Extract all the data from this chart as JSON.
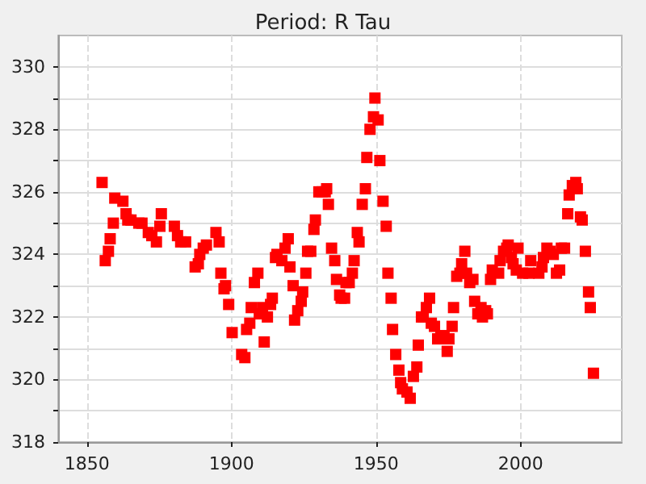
{
  "chart_data": {
    "type": "scatter",
    "title": "Period: R Tau",
    "x": [
      1855.2,
      1856.3,
      1857.4,
      1858.0,
      1859.1,
      1859.6,
      1862.4,
      1863.5,
      1864.1,
      1865.2,
      1867.9,
      1869.0,
      1871.2,
      1872.4,
      1874.0,
      1875.2,
      1875.7,
      1880.2,
      1881.3,
      1882.4,
      1884.1,
      1887.4,
      1888.5,
      1889.0,
      1890.2,
      1891.3,
      1894.6,
      1895.7,
      1896.3,
      1897.4,
      1897.9,
      1899.0,
      1900.2,
      1903.5,
      1904.6,
      1905.2,
      1906.3,
      1906.8,
      1907.9,
      1909.1,
      1909.6,
      1910.7,
      1911.3,
      1912.4,
      1913.5,
      1914.1,
      1915.2,
      1915.7,
      1917.4,
      1918.5,
      1919.6,
      1920.2,
      1921.3,
      1921.8,
      1922.9,
      1924.1,
      1924.6,
      1925.7,
      1926.3,
      1927.4,
      1928.5,
      1929.0,
      1930.2,
      1931.3,
      1932.4,
      1932.9,
      1933.5,
      1934.6,
      1935.7,
      1936.3,
      1937.4,
      1937.9,
      1939.1,
      1939.6,
      1940.7,
      1941.8,
      1942.4,
      1943.5,
      1944.1,
      1945.2,
      1946.3,
      1946.8,
      1947.9,
      1949.1,
      1949.6,
      1950.7,
      1951.3,
      1952.4,
      1953.5,
      1954.1,
      1955.2,
      1955.7,
      1956.8,
      1957.9,
      1958.5,
      1959.1,
      1960.7,
      1961.8,
      1962.9,
      1964.1,
      1964.6,
      1965.7,
      1966.3,
      1967.4,
      1968.5,
      1969.1,
      1970.2,
      1971.3,
      1972.4,
      1973.5,
      1974.6,
      1975.2,
      1976.3,
      1976.8,
      1977.9,
      1979.0,
      1979.6,
      1980.7,
      1981.3,
      1982.4,
      1983.5,
      1984.1,
      1985.2,
      1986.3,
      1986.8,
      1987.9,
      1988.5,
      1989.6,
      1990.2,
      1992.4,
      1992.9,
      1994.1,
      1995.2,
      1995.7,
      1996.8,
      1997.4,
      1998.5,
      1999.1,
      2000.7,
      2002.9,
      2003.5,
      2006.3,
      2007.4,
      2007.9,
      2009.1,
      2010.2,
      2011.3,
      2012.4,
      2013.5,
      2014.1,
      2015.2,
      2016.3,
      2016.8,
      2017.9,
      2019.1,
      2019.6,
      2020.7,
      2021.3,
      2022.4,
      2023.5,
      2024.1,
      2025.2
    ],
    "series": [
      {
        "color": "#ff0000",
        "values": [
          326.3,
          323.8,
          324.1,
          324.5,
          325.0,
          325.8,
          325.7,
          325.3,
          325.1,
          325.1,
          325.0,
          325.0,
          324.7,
          324.6,
          324.4,
          324.9,
          325.3,
          324.9,
          324.6,
          324.4,
          324.4,
          323.6,
          323.7,
          324.0,
          324.2,
          324.3,
          324.7,
          324.4,
          323.4,
          322.9,
          323.0,
          322.4,
          321.5,
          320.8,
          320.7,
          321.6,
          321.8,
          322.3,
          323.1,
          323.4,
          322.1,
          322.3,
          321.2,
          322.0,
          322.4,
          322.6,
          323.9,
          324.0,
          323.8,
          324.2,
          324.5,
          323.6,
          323.0,
          321.9,
          322.2,
          322.5,
          322.8,
          323.4,
          324.1,
          324.1,
          324.8,
          325.1,
          326.0,
          326.0,
          326.0,
          326.1,
          325.6,
          324.2,
          323.8,
          323.2,
          322.7,
          322.6,
          322.6,
          323.1,
          323.1,
          323.4,
          323.8,
          324.7,
          324.4,
          325.6,
          326.1,
          327.1,
          328.0,
          328.4,
          329.0,
          328.3,
          327.0,
          325.7,
          324.9,
          323.4,
          322.6,
          321.6,
          320.8,
          320.3,
          319.9,
          319.7,
          319.6,
          319.4,
          320.1,
          320.4,
          321.1,
          322.0,
          322.0,
          322.3,
          322.6,
          321.8,
          321.7,
          321.3,
          321.4,
          321.4,
          320.9,
          321.3,
          321.7,
          322.3,
          323.3,
          323.4,
          323.7,
          324.1,
          323.4,
          323.1,
          323.2,
          322.5,
          322.1,
          322.3,
          322.0,
          322.2,
          322.1,
          323.2,
          323.5,
          323.4,
          323.8,
          324.1,
          324.2,
          324.3,
          323.9,
          323.7,
          323.5,
          324.2,
          323.4,
          323.4,
          323.8,
          323.4,
          323.6,
          323.9,
          324.2,
          324.1,
          324.0,
          323.4,
          323.5,
          324.2,
          324.2,
          325.3,
          325.9,
          326.2,
          326.3,
          326.1,
          325.2,
          325.1,
          324.1,
          322.8,
          322.3,
          320.2
        ]
      }
    ],
    "xlim": [
      1840,
      2035
    ],
    "xticks": [
      1850,
      1900,
      1950,
      2000
    ],
    "ylim": [
      318,
      331
    ],
    "yticks": [
      318,
      {
        "value": 319,
        "label": null
      },
      320,
      {
        "value": 321,
        "label": null
      },
      322,
      {
        "value": 323,
        "label": null
      },
      324,
      {
        "value": 325,
        "label": null
      },
      326,
      {
        "value": 327,
        "label": null
      },
      328,
      {
        "value": 329,
        "label": null
      },
      330
    ],
    "grid": true,
    "marker": "square"
  }
}
